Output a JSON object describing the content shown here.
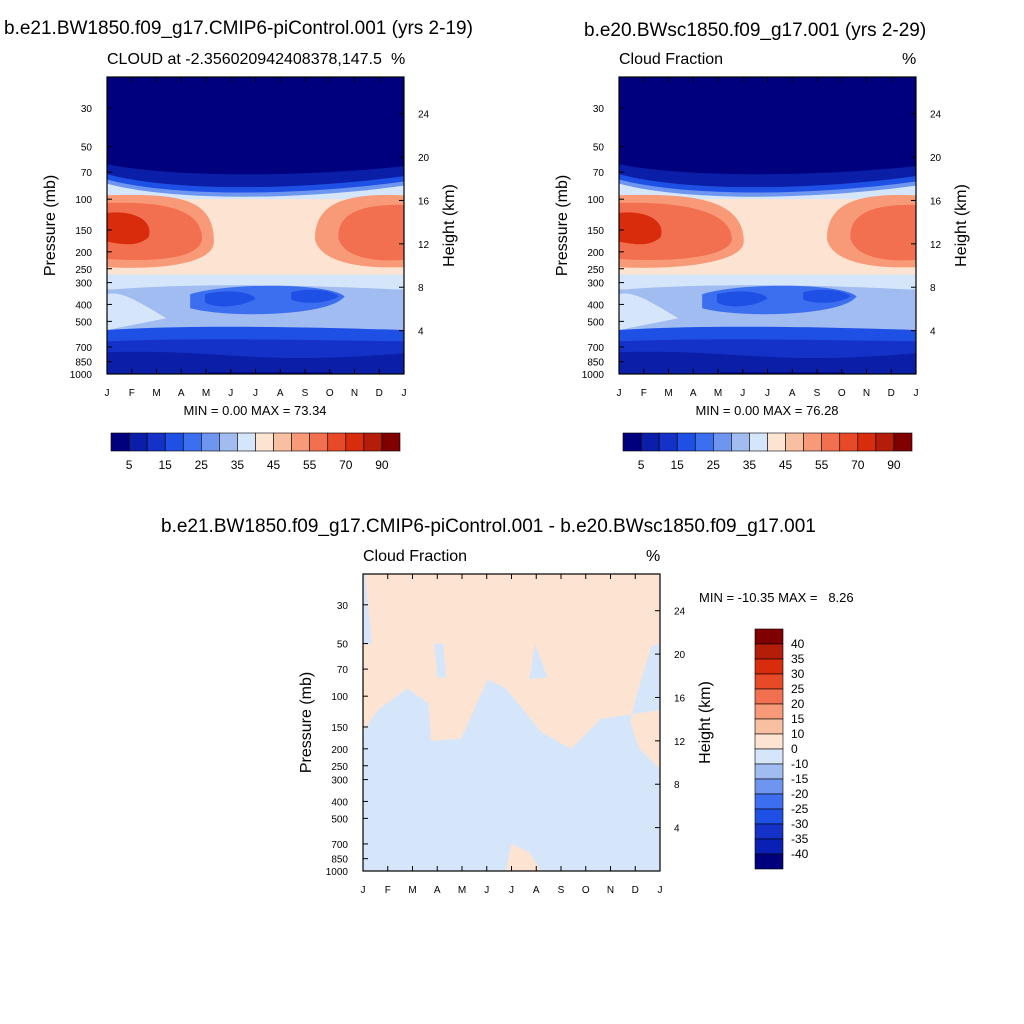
{
  "panel1": {
    "title": "b.e21.BW1850.f09_g17.CMIP6-piControl.001 (yrs 2-19)",
    "left_label": "CLOUD at -2.356020942408378,147.5",
    "right_label": "%",
    "stats": "MIN =   0.00 MAX =  73.34"
  },
  "panel2": {
    "title": "b.e20.BWsc1850.f09_g17.001 (yrs 2-29)",
    "left_label": "Cloud Fraction",
    "right_label": "%",
    "stats": "MIN =   0.00 MAX =  76.28"
  },
  "panel3": {
    "title": "b.e21.BW1850.f09_g17.CMIP6-piControl.001 - b.e20.BWsc1850.f09_g17.001",
    "left_label": "Cloud Fraction",
    "right_label": "%",
    "stats": "MIN = -10.35 MAX =   8.26"
  },
  "colors": {
    "sequential": [
      "#00007f",
      "#0a1ea8",
      "#1432c8",
      "#1e50e6",
      "#3c6ef0",
      "#6e96f0",
      "#a0bcf0",
      "#d6e6fa",
      "#fde4d2",
      "#f8c0a0",
      "#f89a78",
      "#f27050",
      "#e84a28",
      "#d82c0c",
      "#b41e08",
      "#800000"
    ],
    "diverging": [
      "#00007f",
      "#0a20b4",
      "#1432c8",
      "#1e50e6",
      "#3c6ef0",
      "#6e96f0",
      "#a0bcf0",
      "#d6e6fa",
      "#fde4d2",
      "#f8c0a0",
      "#f89a78",
      "#f27050",
      "#e84a28",
      "#d82c0c",
      "#b41e08",
      "#800000"
    ]
  },
  "chart_data": [
    {
      "type": "heatmap",
      "title": "b.e21.BW1850.f09_g17.CMIP6-piControl.001 (yrs 2-19)",
      "ylabel": "Pressure (mb)",
      "ylabel_right": "Height (km)",
      "xticks": [
        "J",
        "F",
        "M",
        "A",
        "M",
        "J",
        "J",
        "A",
        "S",
        "O",
        "N",
        "D",
        "J"
      ],
      "yticks": [
        "30",
        "50",
        "70",
        "100",
        "150",
        "200",
        "250",
        "300",
        "400",
        "500",
        "700",
        "850",
        "1000"
      ],
      "yticks_right": [
        "24",
        "20",
        "16",
        "12",
        "8",
        "4"
      ],
      "colorbar_ticks": [
        "5",
        "15",
        "25",
        "35",
        "45",
        "55",
        "70",
        "90"
      ],
      "min": 0.0,
      "max": 73.34
    },
    {
      "type": "heatmap",
      "title": "b.e20.BWsc1850.f09_g17.001 (yrs 2-29)",
      "ylabel": "Pressure (mb)",
      "ylabel_right": "Height (km)",
      "xticks": [
        "J",
        "F",
        "M",
        "A",
        "M",
        "J",
        "J",
        "A",
        "S",
        "O",
        "N",
        "D",
        "J"
      ],
      "yticks": [
        "30",
        "50",
        "70",
        "100",
        "150",
        "200",
        "250",
        "300",
        "400",
        "500",
        "700",
        "850",
        "1000"
      ],
      "yticks_right": [
        "24",
        "20",
        "16",
        "12",
        "8",
        "4"
      ],
      "colorbar_ticks": [
        "5",
        "15",
        "25",
        "35",
        "45",
        "55",
        "70",
        "90"
      ],
      "min": 0.0,
      "max": 76.28
    },
    {
      "type": "heatmap",
      "title": "b.e21.BW1850.f09_g17.CMIP6-piControl.001 - b.e20.BWsc1850.f09_g17.001",
      "ylabel": "Pressure (mb)",
      "ylabel_right": "Height (km)",
      "xticks": [
        "J",
        "F",
        "M",
        "A",
        "M",
        "J",
        "J",
        "A",
        "S",
        "O",
        "N",
        "D",
        "J"
      ],
      "yticks": [
        "30",
        "50",
        "70",
        "100",
        "150",
        "200",
        "250",
        "300",
        "400",
        "500",
        "700",
        "850",
        "1000"
      ],
      "yticks_right": [
        "24",
        "20",
        "16",
        "12",
        "8",
        "4"
      ],
      "colorbar_ticks": [
        "40",
        "35",
        "30",
        "25",
        "20",
        "15",
        "10",
        "0",
        "-10",
        "-15",
        "-20",
        "-25",
        "-30",
        "-35",
        "-40"
      ],
      "min": -10.35,
      "max": 8.26
    }
  ]
}
